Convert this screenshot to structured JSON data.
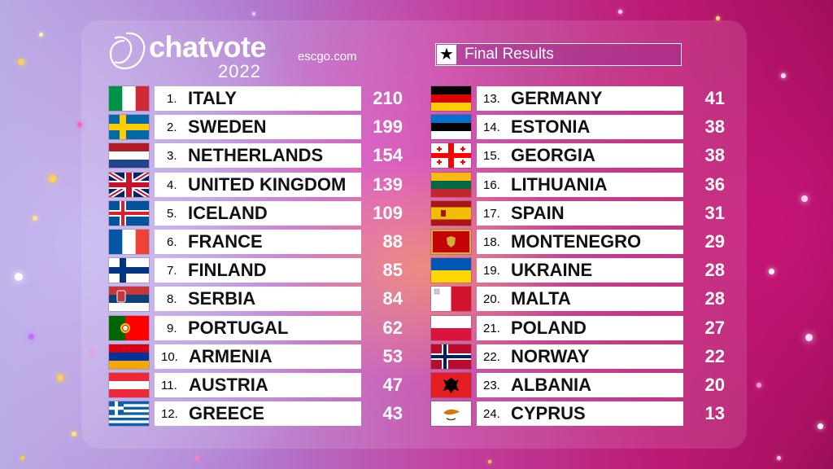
{
  "header": {
    "logo_text": "chatvote",
    "logo_year": "2022",
    "site": "escgo.com",
    "results_label": "Final Results",
    "star_icon": "★"
  },
  "results": [
    {
      "rank": "1.",
      "country": "ITALY",
      "points": "210",
      "flag": "italy"
    },
    {
      "rank": "2.",
      "country": "SWEDEN",
      "points": "199",
      "flag": "sweden"
    },
    {
      "rank": "3.",
      "country": "NETHERLANDS",
      "points": "154",
      "flag": "netherlands"
    },
    {
      "rank": "4.",
      "country": "UNITED KINGDOM",
      "points": "139",
      "flag": "united-kingdom"
    },
    {
      "rank": "5.",
      "country": "ICELAND",
      "points": "109",
      "flag": "iceland"
    },
    {
      "rank": "6.",
      "country": "FRANCE",
      "points": "88",
      "flag": "france"
    },
    {
      "rank": "7.",
      "country": "FINLAND",
      "points": "85",
      "flag": "finland"
    },
    {
      "rank": "8.",
      "country": "SERBIA",
      "points": "84",
      "flag": "serbia"
    },
    {
      "rank": "9.",
      "country": "PORTUGAL",
      "points": "62",
      "flag": "portugal"
    },
    {
      "rank": "10.",
      "country": "ARMENIA",
      "points": "53",
      "flag": "armenia"
    },
    {
      "rank": "11.",
      "country": "AUSTRIA",
      "points": "47",
      "flag": "austria"
    },
    {
      "rank": "12.",
      "country": "GREECE",
      "points": "43",
      "flag": "greece"
    },
    {
      "rank": "13.",
      "country": "GERMANY",
      "points": "41",
      "flag": "germany"
    },
    {
      "rank": "14.",
      "country": "ESTONIA",
      "points": "38",
      "flag": "estonia"
    },
    {
      "rank": "15.",
      "country": "GEORGIA",
      "points": "38",
      "flag": "georgia"
    },
    {
      "rank": "16.",
      "country": "LITHUANIA",
      "points": "36",
      "flag": "lithuania"
    },
    {
      "rank": "17.",
      "country": "SPAIN",
      "points": "31",
      "flag": "spain"
    },
    {
      "rank": "18.",
      "country": "MONTENEGRO",
      "points": "29",
      "flag": "montenegro"
    },
    {
      "rank": "19.",
      "country": "UKRAINE",
      "points": "28",
      "flag": "ukraine"
    },
    {
      "rank": "20.",
      "country": "MALTA",
      "points": "28",
      "flag": "malta"
    },
    {
      "rank": "21.",
      "country": "POLAND",
      "points": "27",
      "flag": "poland"
    },
    {
      "rank": "22.",
      "country": "NORWAY",
      "points": "22",
      "flag": "norway"
    },
    {
      "rank": "23.",
      "country": "ALBANIA",
      "points": "20",
      "flag": "albania"
    },
    {
      "rank": "24.",
      "country": "CYPRUS",
      "points": "13",
      "flag": "cyprus"
    }
  ]
}
